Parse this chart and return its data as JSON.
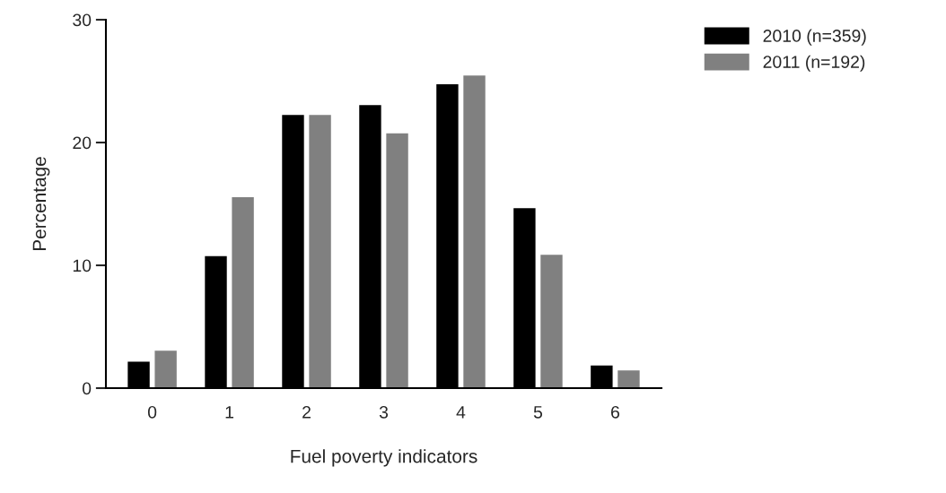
{
  "chart_data": {
    "type": "bar",
    "xlabel": "Fuel poverty indicators",
    "ylabel": "Percentage",
    "categories": [
      "0",
      "1",
      "2",
      "3",
      "4",
      "5",
      "6"
    ],
    "series": [
      {
        "name": "2010 (n=359)",
        "color": "#000000",
        "values": [
          2.2,
          10.8,
          22.3,
          23.1,
          24.8,
          14.7,
          1.9
        ]
      },
      {
        "name": "2011 (n=192)",
        "color": "#808080",
        "values": [
          3.1,
          15.6,
          22.3,
          20.8,
          25.5,
          10.9,
          1.5
        ]
      }
    ],
    "ylim": [
      0,
      30
    ],
    "yticks": [
      0,
      10,
      20,
      30
    ],
    "grid": false,
    "legend": "top right"
  }
}
